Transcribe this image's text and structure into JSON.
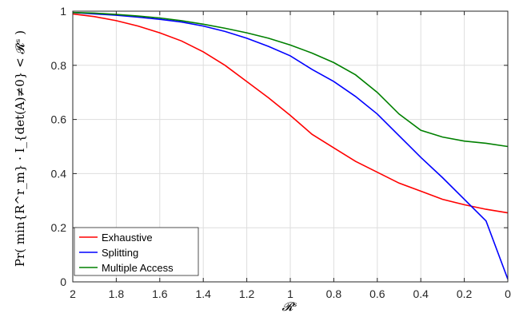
{
  "chart_data": {
    "type": "line",
    "xlabel": "𝓡ˢ",
    "ylabel": "Pr( min{R^r_m} · I_{det(A)≠0} < 𝓡ˢ )",
    "xlim": [
      2,
      0
    ],
    "ylim": [
      0,
      1
    ],
    "x_reversed": true,
    "grid": true,
    "legend_position": "bottom-left",
    "xticks": [
      "2",
      "1.8",
      "1.6",
      "1.4",
      "1.2",
      "1",
      "0.8",
      "0.6",
      "0.4",
      "0.2",
      "0"
    ],
    "yticks": [
      "0",
      "0.2",
      "0.4",
      "0.6",
      "0.8",
      "1"
    ],
    "x": [
      2,
      1.9,
      1.8,
      1.7,
      1.6,
      1.5,
      1.4,
      1.3,
      1.2,
      1.1,
      1.0,
      0.9,
      0.8,
      0.7,
      0.6,
      0.5,
      0.4,
      0.3,
      0.2,
      0.1,
      0
    ],
    "series": [
      {
        "name": "Exhaustive",
        "color": "#ff0000",
        "values": [
          0.99,
          0.98,
          0.965,
          0.945,
          0.92,
          0.89,
          0.85,
          0.8,
          0.74,
          0.68,
          0.615,
          0.545,
          0.495,
          0.445,
          0.405,
          0.365,
          0.335,
          0.305,
          0.285,
          0.268,
          0.255
        ]
      },
      {
        "name": "Splitting",
        "color": "#0000ff",
        "values": [
          0.995,
          0.99,
          0.985,
          0.978,
          0.97,
          0.96,
          0.945,
          0.925,
          0.9,
          0.87,
          0.835,
          0.785,
          0.74,
          0.685,
          0.62,
          0.54,
          0.46,
          0.385,
          0.305,
          0.225,
          0.01
        ]
      },
      {
        "name": "Multiple Access",
        "color": "#008000",
        "values": [
          0.995,
          0.993,
          0.988,
          0.982,
          0.975,
          0.965,
          0.952,
          0.937,
          0.92,
          0.9,
          0.875,
          0.845,
          0.81,
          0.765,
          0.7,
          0.62,
          0.56,
          0.535,
          0.52,
          0.512,
          0.5
        ]
      }
    ]
  }
}
